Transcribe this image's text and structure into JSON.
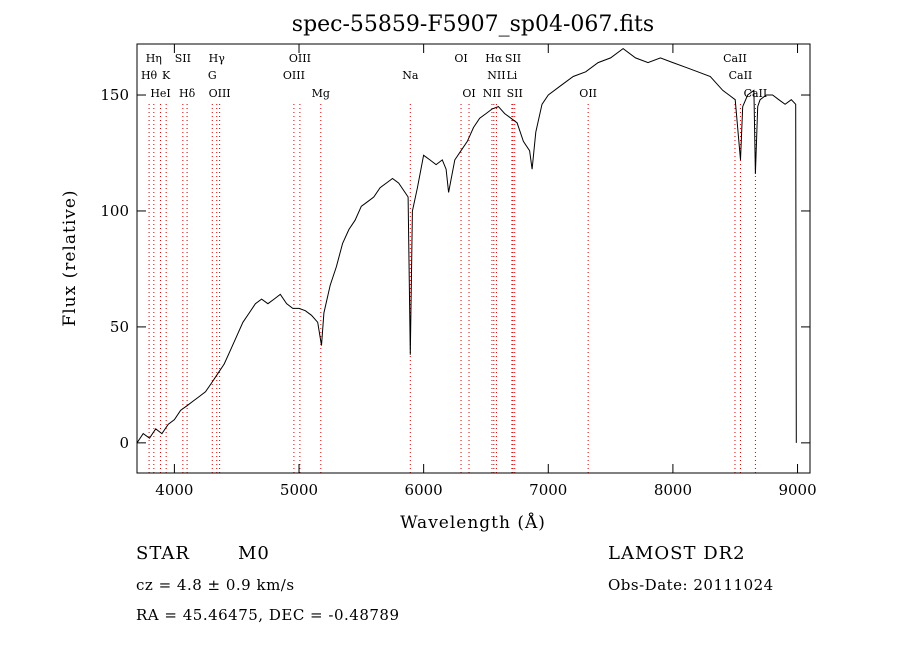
{
  "chart_data": {
    "type": "line",
    "title": "spec-55859-F5907_sp04-067.fits",
    "xlabel": "Wavelength (Å)",
    "ylabel": "Flux (relative)",
    "xlim": [
      3700,
      9100
    ],
    "ylim": [
      -13,
      172
    ],
    "xticks": [
      4000,
      5000,
      6000,
      7000,
      8000,
      9000
    ],
    "yticks": [
      0,
      50,
      100,
      150
    ],
    "grid": false,
    "series": [
      {
        "x": [
          3700,
          3750,
          3800,
          3850,
          3900,
          3950,
          4000,
          4050,
          4100,
          4150,
          4200,
          4250,
          4300,
          4350,
          4400,
          4450,
          4500,
          4550,
          4600,
          4650,
          4700,
          4750,
          4800,
          4850,
          4900,
          4950,
          5000,
          5050,
          5100,
          5150,
          5180,
          5200,
          5250,
          5300,
          5350,
          5400,
          5450,
          5500,
          5550,
          5600,
          5650,
          5700,
          5750,
          5800,
          5850,
          5875,
          5893,
          5910,
          5950,
          6000,
          6050,
          6100,
          6150,
          6180,
          6200,
          6250,
          6300,
          6350,
          6400,
          6450,
          6500,
          6550,
          6600,
          6650,
          6700,
          6750,
          6800,
          6850,
          6870,
          6900,
          6950,
          7000,
          7100,
          7200,
          7300,
          7400,
          7500,
          7600,
          7700,
          7800,
          7900,
          8000,
          8100,
          8200,
          8300,
          8400,
          8450,
          8500,
          8542,
          8560,
          8600,
          8650,
          8662,
          8680,
          8700,
          8750,
          8800,
          8850,
          8900,
          8950,
          8985,
          8990
        ],
        "y": [
          0,
          4,
          2,
          6,
          4,
          8,
          10,
          14,
          16,
          18,
          20,
          22,
          26,
          30,
          34,
          40,
          46,
          52,
          56,
          60,
          62,
          60,
          62,
          64,
          60,
          58,
          58,
          57,
          55,
          52,
          42,
          56,
          68,
          76,
          86,
          92,
          96,
          102,
          104,
          106,
          110,
          112,
          114,
          112,
          108,
          106,
          38,
          100,
          110,
          124,
          122,
          120,
          122,
          118,
          108,
          122,
          126,
          130,
          136,
          140,
          142,
          144,
          145,
          142,
          140,
          138,
          130,
          126,
          118,
          134,
          146,
          150,
          154,
          158,
          160,
          164,
          166,
          170,
          166,
          164,
          166,
          164,
          162,
          160,
          158,
          152,
          150,
          148,
          122,
          145,
          150,
          152,
          116,
          145,
          148,
          150,
          150,
          148,
          146,
          148,
          146,
          0
        ]
      }
    ],
    "line_markers": [
      {
        "label": "Hη",
        "x": 3835,
        "row": 0
      },
      {
        "label": "SII",
        "x": 4068,
        "row": 0
      },
      {
        "label": "Hγ",
        "x": 4340,
        "row": 0
      },
      {
        "label": "OIII",
        "x": 5007,
        "row": 0
      },
      {
        "label": "OI",
        "x": 6300,
        "row": 0
      },
      {
        "label": "Hα",
        "x": 6563,
        "row": 0
      },
      {
        "label": "SII",
        "x": 6717,
        "row": 0
      },
      {
        "label": "CaII",
        "x": 8498,
        "row": 0
      },
      {
        "label": "Hθ",
        "x": 3797,
        "row": 1
      },
      {
        "label": "K",
        "x": 3934,
        "row": 1
      },
      {
        "label": "G",
        "x": 4304,
        "row": 1
      },
      {
        "label": "OIII",
        "x": 4959,
        "row": 1
      },
      {
        "label": "Na",
        "x": 5893,
        "row": 1
      },
      {
        "label": "NII",
        "x": 6584,
        "row": 1
      },
      {
        "label": "Li",
        "x": 6708,
        "row": 1
      },
      {
        "label": "CaII",
        "x": 8542,
        "row": 1
      },
      {
        "label": "HeI",
        "x": 3889,
        "row": 2
      },
      {
        "label": "Hδ",
        "x": 4102,
        "row": 2
      },
      {
        "label": "OIII",
        "x": 4363,
        "row": 2
      },
      {
        "label": "Mg",
        "x": 5175,
        "row": 2
      },
      {
        "label": "OI",
        "x": 6364,
        "row": 2
      },
      {
        "label": "NII",
        "x": 6548,
        "row": 2
      },
      {
        "label": "SII",
        "x": 6731,
        "row": 2
      },
      {
        "label": "OII",
        "x": 7320,
        "row": 2
      },
      {
        "label": "CaII",
        "x": 8662,
        "row": 2
      }
    ]
  },
  "footer": {
    "object_class": "STAR",
    "subclass": "M0",
    "survey": "LAMOST DR2",
    "redshift": "cz = 4.8 ± 0.9 km/s",
    "obs_date": "Obs-Date: 20111024",
    "coords": "RA =  45.46475, DEC =  -0.48789"
  }
}
